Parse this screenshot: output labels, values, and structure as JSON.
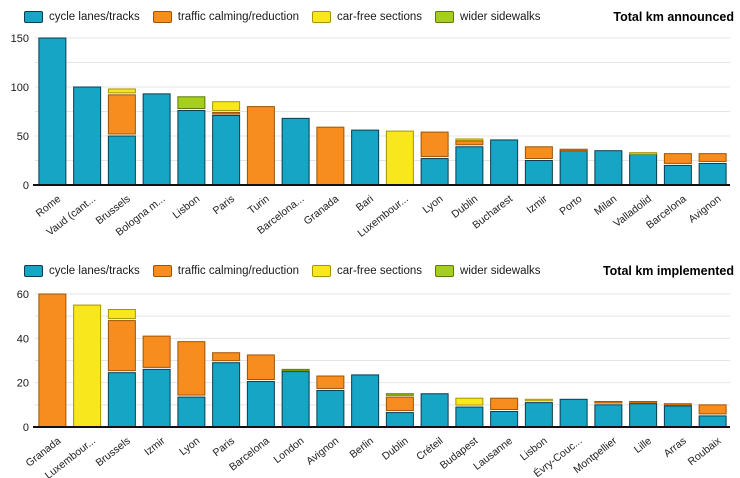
{
  "colors": {
    "cycle": {
      "fill": "#16a5c4",
      "stroke": "#0a3c4d"
    },
    "traffic": {
      "fill": "#f78d1e",
      "stroke": "#9e5400"
    },
    "carfree": {
      "fill": "#f8e71c",
      "stroke": "#a79400"
    },
    "sidewalks": {
      "fill": "#a5ce1f",
      "stroke": "#5c7a00"
    }
  },
  "legend": {
    "items": [
      {
        "key": "cycle",
        "label": "cycle lanes/tracks"
      },
      {
        "key": "traffic",
        "label": "traffic calming/reduction"
      },
      {
        "key": "carfree",
        "label": "car-free sections"
      },
      {
        "key": "sidewalks",
        "label": "wider sidewalks"
      }
    ]
  },
  "chart_data": [
    {
      "type": "bar",
      "stacked": true,
      "title": "Total km announced",
      "legend_position": "top",
      "grid": true,
      "ylim": [
        0,
        150
      ],
      "yticks": [
        0,
        50,
        100,
        150
      ],
      "grid_step": 25,
      "categories": [
        "Rome",
        "Vaud (cant...",
        "Brussels",
        "Bologna m...",
        "Lisbon",
        "Paris",
        "Turin",
        "Barcelona...",
        "Granada",
        "Bari",
        "Luxembour...",
        "Lyon",
        "Dublin",
        "Bucharest",
        "Izmir",
        "Porto",
        "Milan",
        "Valladolid",
        "Barcelona",
        "Avignon"
      ],
      "series": [
        {
          "key": "cycle",
          "name": "cycle lanes/tracks",
          "values": [
            150,
            100,
            50,
            93,
            76,
            71,
            0,
            68,
            0,
            56,
            0,
            27,
            39,
            46,
            25,
            35,
            35,
            32,
            20,
            22
          ]
        },
        {
          "key": "traffic",
          "name": "traffic calming/reduction",
          "values": [
            0,
            0,
            42,
            0,
            0,
            3,
            80,
            0,
            59,
            0,
            0,
            27,
            6,
            0,
            14,
            1.5,
            0,
            0,
            12,
            10
          ]
        },
        {
          "key": "carfree",
          "name": "car-free sections",
          "values": [
            0,
            0,
            6,
            0,
            0,
            11,
            0,
            0,
            0,
            0,
            55,
            0,
            2,
            0,
            0,
            0,
            0,
            1,
            0,
            0
          ]
        },
        {
          "key": "sidewalks",
          "name": "wider sidewalks",
          "values": [
            0,
            0,
            0,
            0,
            14,
            0,
            0,
            0,
            0,
            0,
            0,
            0,
            0,
            0,
            0,
            0,
            0,
            0,
            0,
            0
          ]
        }
      ]
    },
    {
      "type": "bar",
      "stacked": true,
      "title": "Total km implemented",
      "legend_position": "top",
      "grid": true,
      "ylim": [
        0,
        60
      ],
      "yticks": [
        0,
        20,
        40,
        60
      ],
      "grid_step": 10,
      "categories": [
        "Granada",
        "Luxembour...",
        "Brussels",
        "Izmir",
        "Lyon",
        "Paris",
        "Barcelona",
        "London",
        "Avignon",
        "Berlin",
        "Dublin",
        "Créteil",
        "Budapest",
        "Lausanne",
        "Lisbon",
        "Évry-Couc...",
        "Montpellier",
        "Lille",
        "Arras",
        "Roubaix"
      ],
      "series": [
        {
          "key": "cycle",
          "name": "cycle lanes/tracks",
          "values": [
            0,
            0,
            24.5,
            26,
            13.5,
            29,
            20.5,
            25,
            16.5,
            23.5,
            6.5,
            15,
            9,
            7,
            11,
            12.5,
            10,
            10.5,
            9.5,
            5
          ]
        },
        {
          "key": "traffic",
          "name": "traffic calming/reduction",
          "values": [
            60,
            0,
            23.5,
            15,
            25,
            4.5,
            12,
            0,
            6.5,
            0,
            7,
            0,
            0,
            6,
            0,
            0,
            1.5,
            1,
            1,
            5
          ]
        },
        {
          "key": "carfree",
          "name": "car-free sections",
          "values": [
            0,
            55,
            5,
            0,
            0,
            0,
            0,
            0,
            0,
            0,
            0,
            0,
            4,
            0,
            1.5,
            0,
            0,
            0,
            0,
            0
          ]
        },
        {
          "key": "sidewalks",
          "name": "wider sidewalks",
          "values": [
            0,
            0,
            0,
            0,
            0,
            0,
            0,
            1,
            0,
            0,
            1.5,
            0,
            0,
            0,
            0,
            0,
            0,
            0,
            0,
            0
          ]
        }
      ]
    }
  ]
}
